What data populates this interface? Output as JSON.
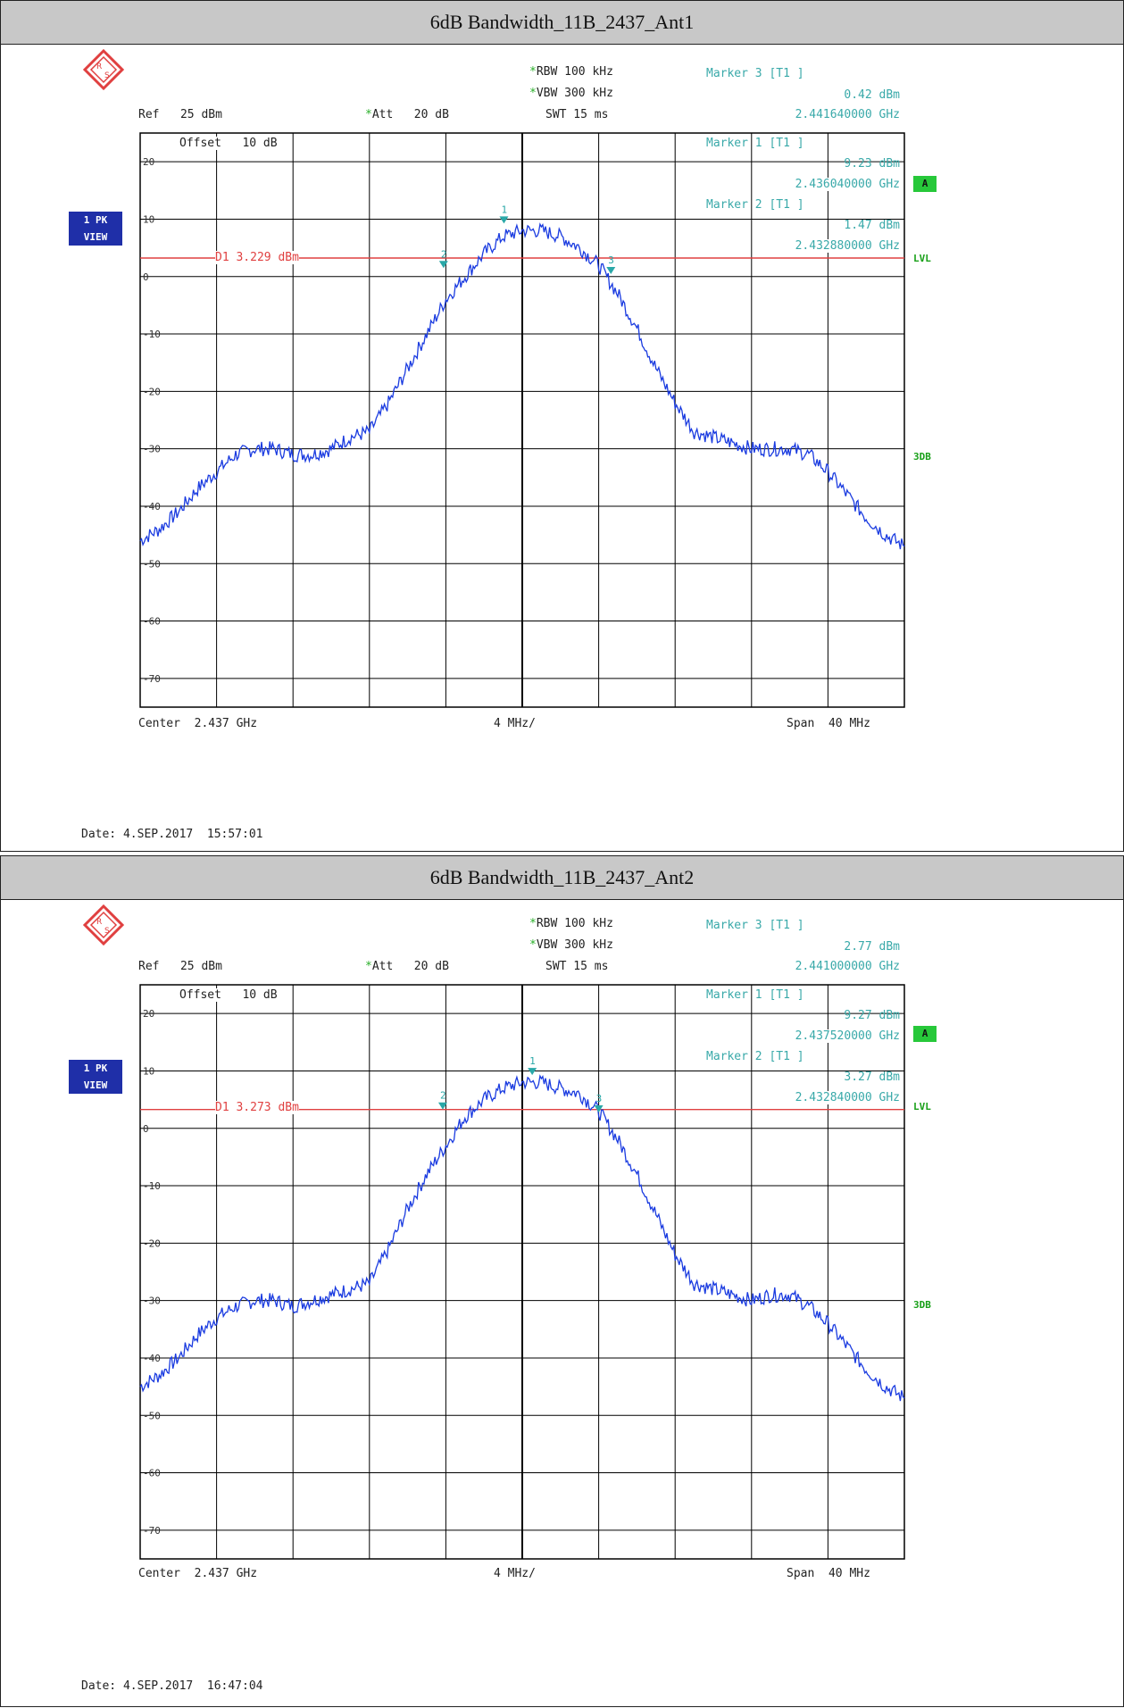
{
  "panels": [
    {
      "title": "6dB Bandwidth_11B_2437_Ant1",
      "rbw": "RBW 100 kHz",
      "vbw": "VBW 300 kHz",
      "swt": "SWT 15 ms",
      "ref": "Ref   25 dBm",
      "att": "Att   20 dB",
      "offset": "Offset   10 dB",
      "trace_box": [
        "1 PK",
        "VIEW"
      ],
      "marker_badge": "A",
      "side_labels": {
        "lvl": "LVL",
        "db3": "3DB"
      },
      "markers": [
        {
          "title": "Marker 3 [T1 ]",
          "level": "0.42 dBm",
          "freq": "2.441640000 GHz"
        },
        {
          "title": "Marker 1 [T1 ]",
          "level": "9.23 dBm",
          "freq": "2.436040000 GHz"
        },
        {
          "title": "Marker 2 [T1 ]",
          "level": "1.47 dBm",
          "freq": "2.432880000 GHz"
        }
      ],
      "display_line": "D1 3.229 dBm",
      "center": "Center  2.437 GHz",
      "div": "4 MHz/",
      "span": "Span  40 MHz",
      "date": "Date: 4.SEP.2017  15:57:01"
    },
    {
      "title": "6dB Bandwidth_11B_2437_Ant2",
      "rbw": "RBW 100 kHz",
      "vbw": "VBW 300 kHz",
      "swt": "SWT 15 ms",
      "ref": "Ref   25 dBm",
      "att": "Att   20 dB",
      "offset": "Offset   10 dB",
      "trace_box": [
        "1 PK",
        "VIEW"
      ],
      "marker_badge": "A",
      "side_labels": {
        "lvl": "LVL",
        "db3": "3DB"
      },
      "markers": [
        {
          "title": "Marker 3 [T1 ]",
          "level": "2.77 dBm",
          "freq": "2.441000000 GHz"
        },
        {
          "title": "Marker 1 [T1 ]",
          "level": "9.27 dBm",
          "freq": "2.437520000 GHz"
        },
        {
          "title": "Marker 2 [T1 ]",
          "level": "3.27 dBm",
          "freq": "2.432840000 GHz"
        }
      ],
      "display_line": "D1 3.273 dBm",
      "center": "Center  2.437 GHz",
      "div": "4 MHz/",
      "span": "Span  40 MHz",
      "date": "Date: 4.SEP.2017  16:47:04"
    }
  ],
  "colors": {
    "trace": "#1a3be0",
    "display_line": "#e04040",
    "marker": "#2aa8a8",
    "grid": "#000000"
  },
  "chart_data": [
    {
      "type": "line",
      "xlabel": "",
      "ylabel": "",
      "xlim": [
        2.417,
        2.457
      ],
      "ylim": [
        -75,
        25
      ],
      "y_ticks": [
        20,
        10,
        0,
        -10,
        -20,
        -30,
        -40,
        -50,
        -60,
        -70
      ],
      "display_line_dbm": 3.229,
      "marker_points": [
        {
          "id": "1",
          "x": 2.43604,
          "y": 9.23
        },
        {
          "id": "2",
          "x": 2.43288,
          "y": 1.47
        },
        {
          "id": "3",
          "x": 2.44164,
          "y": 0.42
        }
      ],
      "series": [
        {
          "x": [
            2.417,
            2.418,
            2.419,
            2.42,
            2.421,
            2.422,
            2.423,
            2.424,
            2.425,
            2.426,
            2.427,
            2.428,
            2.429,
            2.43,
            2.431,
            2.432,
            2.433,
            2.434,
            2.435,
            2.436,
            2.437,
            2.438,
            2.439,
            2.44,
            2.441,
            2.442,
            2.443,
            2.444,
            2.445,
            2.446,
            2.447,
            2.448,
            2.449,
            2.45,
            2.451,
            2.452,
            2.453,
            2.454,
            2.455,
            2.456,
            2.457
          ],
          "y": [
            -46,
            -44,
            -41,
            -37,
            -34,
            -31,
            -30,
            -30,
            -31,
            -31,
            -30,
            -28,
            -27,
            -22,
            -16,
            -10,
            -4,
            0,
            4,
            7,
            8,
            8,
            7,
            5,
            2,
            -3,
            -9,
            -16,
            -22,
            -27,
            -28,
            -29,
            -30,
            -30,
            -30,
            -31,
            -34,
            -38,
            -42,
            -45,
            -47
          ]
        }
      ]
    },
    {
      "type": "line",
      "xlabel": "",
      "ylabel": "",
      "xlim": [
        2.417,
        2.457
      ],
      "ylim": [
        -75,
        25
      ],
      "y_ticks": [
        20,
        10,
        0,
        -10,
        -20,
        -30,
        -40,
        -50,
        -60,
        -70
      ],
      "display_line_dbm": 3.273,
      "marker_points": [
        {
          "id": "1",
          "x": 2.43752,
          "y": 9.27
        },
        {
          "id": "2",
          "x": 2.43284,
          "y": 3.27
        },
        {
          "id": "3",
          "x": 2.441,
          "y": 2.77
        }
      ],
      "series": [
        {
          "x": [
            2.417,
            2.418,
            2.419,
            2.42,
            2.421,
            2.422,
            2.423,
            2.424,
            2.425,
            2.426,
            2.427,
            2.428,
            2.429,
            2.43,
            2.431,
            2.432,
            2.433,
            2.434,
            2.435,
            2.436,
            2.437,
            2.438,
            2.439,
            2.44,
            2.441,
            2.442,
            2.443,
            2.444,
            2.445,
            2.446,
            2.447,
            2.448,
            2.449,
            2.45,
            2.451,
            2.452,
            2.453,
            2.454,
            2.455,
            2.456,
            2.457
          ],
          "y": [
            -45,
            -43,
            -40,
            -36,
            -33,
            -31,
            -30,
            -30,
            -31,
            -30,
            -29,
            -28,
            -27,
            -21,
            -14,
            -8,
            -3,
            2,
            5,
            7,
            8,
            8,
            7,
            6,
            3,
            -2,
            -8,
            -15,
            -22,
            -27,
            -28,
            -29,
            -30,
            -29,
            -29,
            -31,
            -34,
            -38,
            -42,
            -45,
            -47
          ]
        }
      ]
    }
  ]
}
